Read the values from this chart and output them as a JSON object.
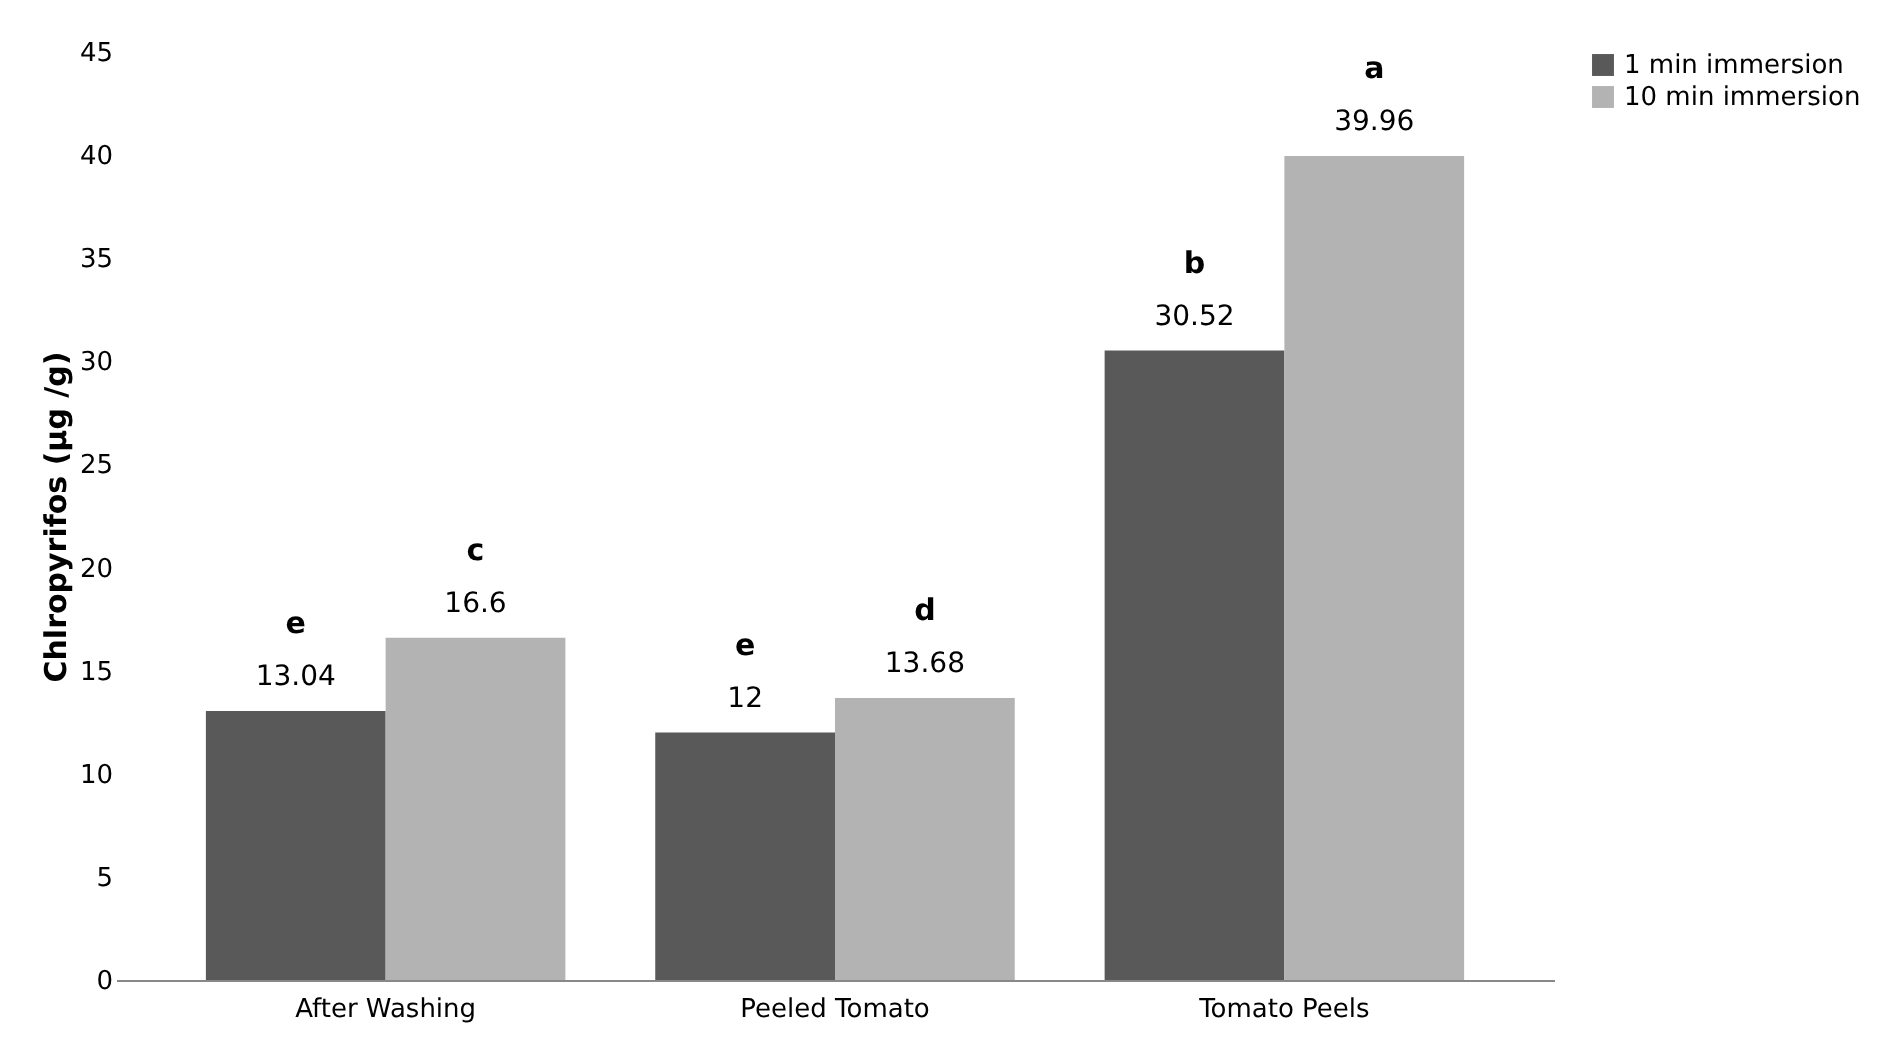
{
  "chart_data": {
    "type": "bar",
    "ylabel": "Chlropyrifos (µg /g)",
    "categories": [
      "After Washing",
      "Peeled Tomato",
      "Tomato Peels"
    ],
    "series": [
      {
        "name": "1 min immersion",
        "color": "#595959",
        "values": [
          13.04,
          12,
          30.52
        ]
      },
      {
        "name": "10 min immersion",
        "color": "#b3b3b3",
        "values": [
          16.6,
          13.68,
          39.96
        ]
      }
    ],
    "ylim": [
      0,
      45
    ],
    "yticks": [
      0,
      5,
      10,
      15,
      20,
      25,
      30,
      35,
      40,
      45
    ],
    "grid": false,
    "legend": "right",
    "data_labels": true,
    "annotations": [
      "e",
      "c",
      "e",
      "d",
      "b",
      "a"
    ]
  }
}
